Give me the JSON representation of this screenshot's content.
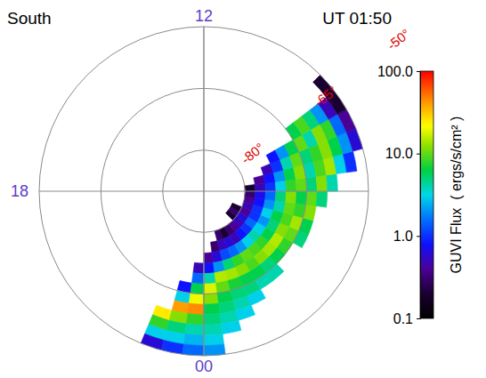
{
  "chart_data": {
    "type": "polar_heatmap",
    "title": "South",
    "subtitle": "UT 01:50",
    "grid": true,
    "log": true,
    "rlim": [
      -90,
      -50
    ],
    "rticks": [
      {
        "value": -80,
        "label": "-80°"
      },
      {
        "value": -65,
        "label": "-65°"
      },
      {
        "value": -50,
        "label": "-50°"
      }
    ],
    "mlt_ticks": [
      12,
      18,
      {
        "value": 0,
        "label": "00"
      }
    ],
    "mlt_edges": [
      22.5,
      23,
      23.5,
      0,
      0.5,
      1,
      1.5,
      2,
      2.5,
      3,
      3.5,
      4,
      4.5,
      5,
      5.5,
      6,
      6.5,
      7,
      7.5,
      8,
      8.5,
      9
    ],
    "mlat_edges": [
      -90,
      -87.5,
      -85,
      -82.5,
      -80,
      -77.5,
      -75,
      -72.5,
      -70,
      -67.5,
      -65,
      -62.5,
      -60,
      -57.5,
      -55,
      -52.5,
      -50
    ],
    "flux": [
      [
        null,
        null,
        null,
        null,
        null,
        null,
        null,
        null,
        null,
        null,
        null,
        null,
        25,
        8,
        3,
        0.6
      ],
      [
        null,
        null,
        null,
        null,
        null,
        null,
        null,
        null,
        null,
        0.8,
        3,
        40,
        12,
        5,
        3,
        1
      ],
      [
        null,
        null,
        null,
        null,
        null,
        null,
        null,
        0.5,
        1.5,
        6,
        20,
        45,
        8,
        4,
        2.5,
        1.5
      ],
      [
        null,
        null,
        null,
        null,
        null,
        null,
        0.4,
        0.8,
        4,
        18,
        12,
        6,
        5,
        4,
        3,
        2
      ],
      [
        null,
        null,
        null,
        null,
        null,
        0.3,
        0.6,
        2,
        15,
        10,
        6,
        5,
        4,
        3,
        null,
        null
      ],
      [
        null,
        null,
        null,
        null,
        0.3,
        0.5,
        1.2,
        5,
        14,
        7,
        5,
        4,
        3,
        null,
        null,
        null
      ],
      [
        null,
        null,
        null,
        null,
        0.2,
        0.6,
        1.5,
        8,
        12,
        6,
        5,
        3,
        null,
        null,
        null,
        null
      ],
      [
        null,
        null,
        null,
        null,
        0.3,
        0.5,
        2,
        10,
        9,
        6,
        4,
        null,
        null,
        null,
        null,
        null
      ],
      [
        null,
        null,
        null,
        null,
        0.4,
        0.8,
        3,
        9,
        12,
        5,
        4,
        null,
        null,
        null,
        null,
        null
      ],
      [
        null,
        null,
        null,
        0.2,
        0.5,
        1,
        4,
        8,
        14,
        6,
        null,
        null,
        null,
        null,
        null,
        null
      ],
      [
        null,
        null,
        null,
        0.3,
        0.6,
        1.5,
        3,
        6,
        15,
        8,
        null,
        null,
        null,
        null,
        null,
        null
      ],
      [
        null,
        null,
        null,
        0.2,
        0.4,
        1,
        2,
        5,
        12,
        10,
        5,
        null,
        null,
        null,
        null,
        null
      ],
      [
        null,
        null,
        null,
        null,
        0.5,
        1,
        3,
        6,
        9,
        14,
        6,
        null,
        null,
        null,
        null,
        null
      ],
      [
        null,
        null,
        null,
        null,
        0.4,
        0.8,
        2,
        4,
        10,
        8,
        12,
        null,
        null,
        null,
        null,
        null
      ],
      [
        null,
        null,
        null,
        null,
        0.3,
        0.7,
        1.5,
        5,
        12,
        6,
        10,
        5,
        null,
        null,
        null,
        null
      ],
      [
        null,
        null,
        null,
        null,
        0.2,
        0.5,
        1,
        3,
        8,
        10,
        5,
        12,
        4,
        null,
        null,
        null
      ],
      [
        null,
        null,
        null,
        null,
        null,
        0.4,
        0.8,
        2,
        6,
        12,
        4,
        9,
        14,
        3,
        1,
        null
      ],
      [
        null,
        null,
        null,
        null,
        null,
        null,
        0.5,
        1,
        4,
        10,
        5,
        8,
        12,
        6,
        2,
        0.6
      ],
      [
        null,
        null,
        null,
        null,
        null,
        null,
        null,
        0.8,
        2,
        6,
        10,
        4,
        12,
        8,
        1.5,
        0.4
      ],
      [
        null,
        null,
        null,
        null,
        null,
        null,
        null,
        null,
        null,
        null,
        6,
        9,
        5,
        2,
        0.5,
        0.2
      ],
      [
        null,
        null,
        null,
        null,
        null,
        null,
        null,
        null,
        null,
        null,
        null,
        null,
        null,
        null,
        null,
        0.2
      ]
    ],
    "colorbar": {
      "label": "GUVI Flux  ( ergs/s/cm² )",
      "lim": [
        0.1,
        100
      ],
      "ticks": [
        0.1,
        {
          "value": 1,
          "label": "1.0"
        },
        {
          "value": 10,
          "label": "10.0"
        },
        {
          "value": 100,
          "label": "100.0"
        }
      ]
    }
  }
}
